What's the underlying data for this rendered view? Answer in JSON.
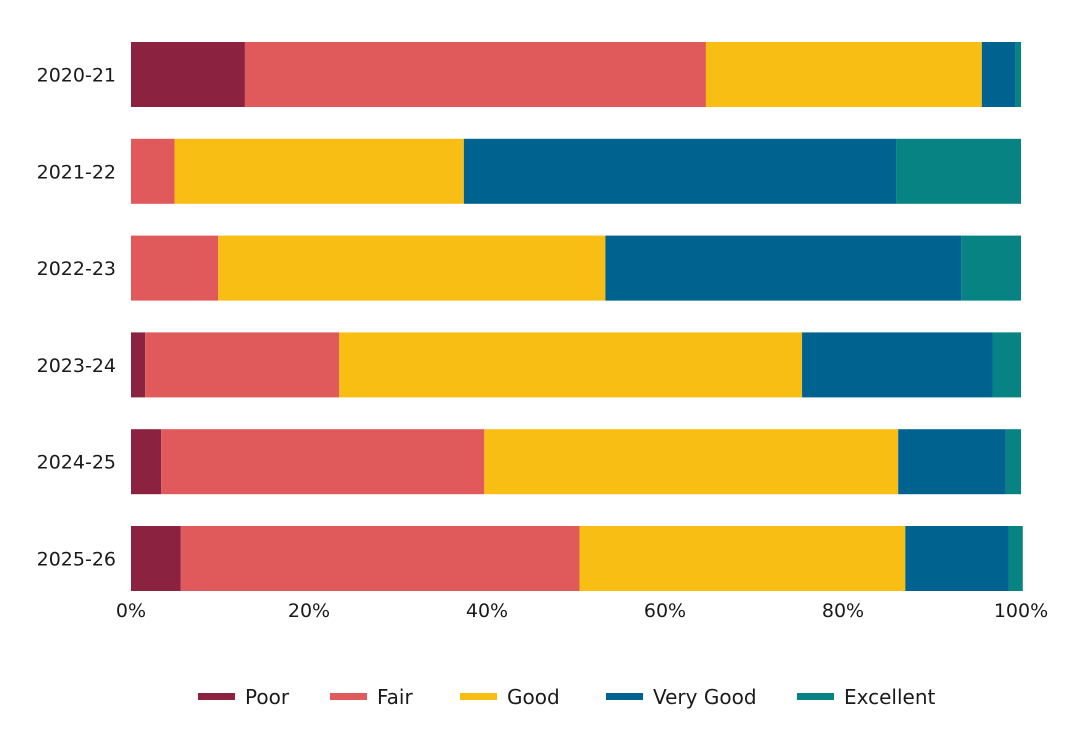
{
  "chart_data": {
    "type": "bar",
    "orientation": "horizontal",
    "stacked": true,
    "percent": true,
    "title": "",
    "xlabel": "",
    "ylabel": "",
    "xlim": [
      0,
      100
    ],
    "grid": false,
    "legend_position": "bottom",
    "categories": [
      "2020-21",
      "2021-22",
      "2022-23",
      "2023-24",
      "2024-25",
      "2025-26"
    ],
    "x_ticks": [
      "0%",
      "20%",
      "40%",
      "60%",
      "80%",
      "100%"
    ],
    "series": [
      {
        "name": "Poor",
        "color": "#8b2340",
        "values": [
          12.8,
          0,
          0,
          1.6,
          3.4,
          5.6
        ]
      },
      {
        "name": "Fair",
        "color": "#e05a5c",
        "values": [
          51.8,
          4.9,
          9.8,
          21.8,
          36.3,
          44.8
        ]
      },
      {
        "name": "Good",
        "color": "#f9be14",
        "values": [
          31.0,
          32.5,
          43.5,
          52.0,
          46.5,
          36.6
        ]
      },
      {
        "name": "Very Good",
        "color": "#00638f",
        "values": [
          3.8,
          48.6,
          40.0,
          21.4,
          12.1,
          11.6
        ]
      },
      {
        "name": "Excellent",
        "color": "#088383",
        "values": [
          0.6,
          14.0,
          6.7,
          3.2,
          1.7,
          1.6
        ]
      }
    ]
  }
}
